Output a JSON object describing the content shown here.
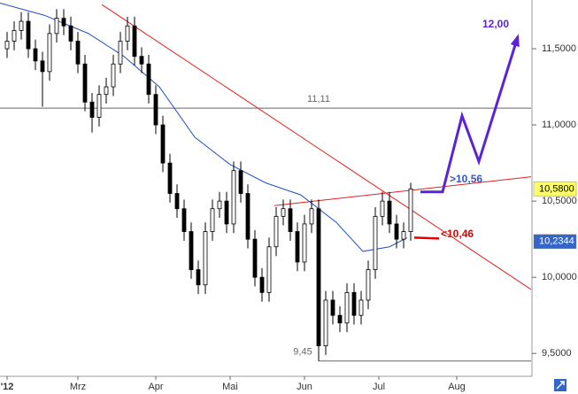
{
  "chart_data": {
    "type": "candlestick",
    "x": [
      2,
      4,
      6,
      8,
      10,
      12,
      14,
      16,
      18,
      20,
      22,
      24,
      26,
      28,
      30,
      32,
      34,
      36,
      38,
      40,
      42,
      44,
      46,
      48,
      50,
      52,
      54,
      56,
      58,
      60,
      62,
      64,
      66,
      68,
      70,
      72,
      74,
      76,
      78,
      80,
      82,
      84,
      86,
      88,
      90,
      92,
      94,
      96,
      98,
      100,
      102,
      104,
      106,
      108,
      110,
      112,
      114,
      116
    ],
    "open": [
      11.5,
      11.55,
      11.62,
      11.68,
      11.5,
      11.42,
      11.35,
      11.6,
      11.7,
      11.65,
      11.55,
      11.4,
      11.15,
      11.05,
      11.2,
      11.25,
      11.4,
      11.55,
      11.65,
      11.45,
      11.4,
      11.2,
      11.0,
      10.75,
      10.55,
      10.45,
      10.3,
      10.05,
      9.95,
      10.3,
      10.45,
      10.5,
      10.35,
      10.7,
      10.55,
      10.25,
      10.0,
      9.9,
      10.2,
      10.4,
      10.45,
      10.3,
      10.1,
      10.35,
      10.45,
      9.55,
      9.85,
      9.75,
      9.7,
      9.9,
      9.75,
      9.85,
      10.05,
      10.4,
      10.5,
      10.35,
      10.25,
      10.3
    ],
    "high": [
      11.61,
      11.68,
      11.74,
      11.74,
      11.56,
      11.48,
      11.66,
      11.76,
      11.76,
      11.71,
      11.61,
      11.46,
      11.21,
      11.26,
      11.31,
      11.46,
      11.61,
      11.71,
      11.71,
      11.51,
      11.46,
      11.26,
      11.06,
      10.81,
      10.61,
      10.51,
      10.36,
      10.11,
      10.36,
      10.51,
      10.56,
      10.56,
      10.76,
      10.76,
      10.61,
      10.31,
      10.06,
      10.26,
      10.46,
      10.51,
      10.51,
      10.36,
      10.41,
      10.51,
      10.51,
      9.91,
      9.91,
      9.81,
      9.96,
      9.96,
      9.91,
      10.11,
      10.46,
      10.56,
      10.56,
      10.41,
      10.36,
      10.62
    ],
    "low": [
      11.44,
      11.49,
      11.56,
      11.44,
      11.36,
      11.12,
      11.29,
      11.54,
      11.59,
      11.49,
      11.34,
      11.09,
      10.95,
      10.99,
      11.14,
      11.19,
      11.34,
      11.49,
      11.39,
      11.34,
      11.14,
      10.94,
      10.69,
      10.49,
      10.39,
      10.24,
      9.99,
      9.89,
      9.89,
      10.24,
      10.39,
      10.29,
      10.29,
      10.49,
      10.19,
      9.94,
      9.84,
      9.84,
      10.14,
      10.34,
      10.24,
      10.04,
      10.04,
      10.29,
      9.45,
      9.49,
      9.69,
      9.64,
      9.64,
      9.69,
      9.69,
      9.79,
      9.99,
      10.34,
      10.29,
      10.19,
      10.19,
      10.24
    ],
    "close": [
      11.55,
      11.62,
      11.68,
      11.5,
      11.42,
      11.35,
      11.6,
      11.7,
      11.65,
      11.55,
      11.4,
      11.15,
      11.05,
      11.2,
      11.25,
      11.4,
      11.55,
      11.65,
      11.45,
      11.4,
      11.2,
      11.0,
      10.75,
      10.55,
      10.45,
      10.3,
      10.05,
      9.95,
      10.3,
      10.45,
      10.5,
      10.35,
      10.7,
      10.55,
      10.25,
      10.0,
      9.9,
      10.2,
      10.4,
      10.45,
      10.3,
      10.1,
      10.35,
      10.45,
      9.55,
      9.85,
      9.75,
      9.7,
      9.9,
      9.75,
      9.85,
      10.05,
      10.4,
      10.5,
      10.35,
      10.25,
      10.3,
      10.58
    ],
    "ma": {
      "color": "#2050c0",
      "x": [
        0,
        12.5,
        25,
        35,
        45,
        55,
        65,
        75,
        85,
        95,
        102.5,
        110,
        115
      ],
      "values": [
        11.8,
        11.72,
        11.6,
        11.45,
        11.25,
        10.92,
        10.74,
        10.62,
        10.54,
        10.36,
        10.17,
        10.2,
        10.26
      ]
    },
    "xlim": [
      0,
      150
    ],
    "ylim": [
      9.35,
      11.82
    ],
    "xticks": [
      {
        "value": 2,
        "label": "'12"
      },
      {
        "value": 22,
        "label": "Mrz"
      },
      {
        "value": 44,
        "label": "Apr"
      },
      {
        "value": 65,
        "label": "Mai"
      },
      {
        "value": 86,
        "label": "Jun"
      },
      {
        "value": 107,
        "label": "Jul"
      },
      {
        "value": 129,
        "label": "Aug"
      }
    ],
    "yticks": [
      {
        "value": 9.5,
        "label": "9,5000"
      },
      {
        "value": 10,
        "label": "10,0000"
      },
      {
        "value": 10.5,
        "label": "10,5000"
      },
      {
        "value": 11,
        "label": "11,0000"
      },
      {
        "value": 11.5,
        "label": "11,5000"
      }
    ],
    "price_labels": [
      {
        "value": 10.58,
        "label": "10,5800",
        "color": "#ffff66"
      },
      {
        "value": 10.2344,
        "label": "10,2344",
        "color": "#3366cc"
      }
    ],
    "trend_lines": [
      {
        "x": [
          28.75,
          150
        ],
        "y": [
          11.79,
          9.92
        ],
        "color": "#e02020"
      },
      {
        "x": [
          77.5,
          150
        ],
        "y": [
          10.47,
          10.66
        ],
        "color": "#e02020"
      }
    ],
    "levels": [
      {
        "value": 11.11,
        "label": "11,11",
        "x": [
          0,
          150
        ],
        "color": "#666666"
      },
      {
        "value": 9.45,
        "label": "9,45",
        "x": [
          90,
          150
        ],
        "color": "#666666"
      }
    ],
    "projection": {
      "color": "#5a22e0",
      "x": [
        118.75,
        125,
        130.5,
        135.25,
        146.25
      ],
      "y": [
        10.56,
        10.56,
        11.06,
        10.76,
        11.58
      ],
      "label": "12,00"
    },
    "annotations": [
      {
        "text": ">10,56",
        "color": "#3355cc"
      },
      {
        "text": "<10,46",
        "color": "#e00000",
        "x": [
          117,
          124
        ],
        "y": 10.26
      }
    ]
  }
}
